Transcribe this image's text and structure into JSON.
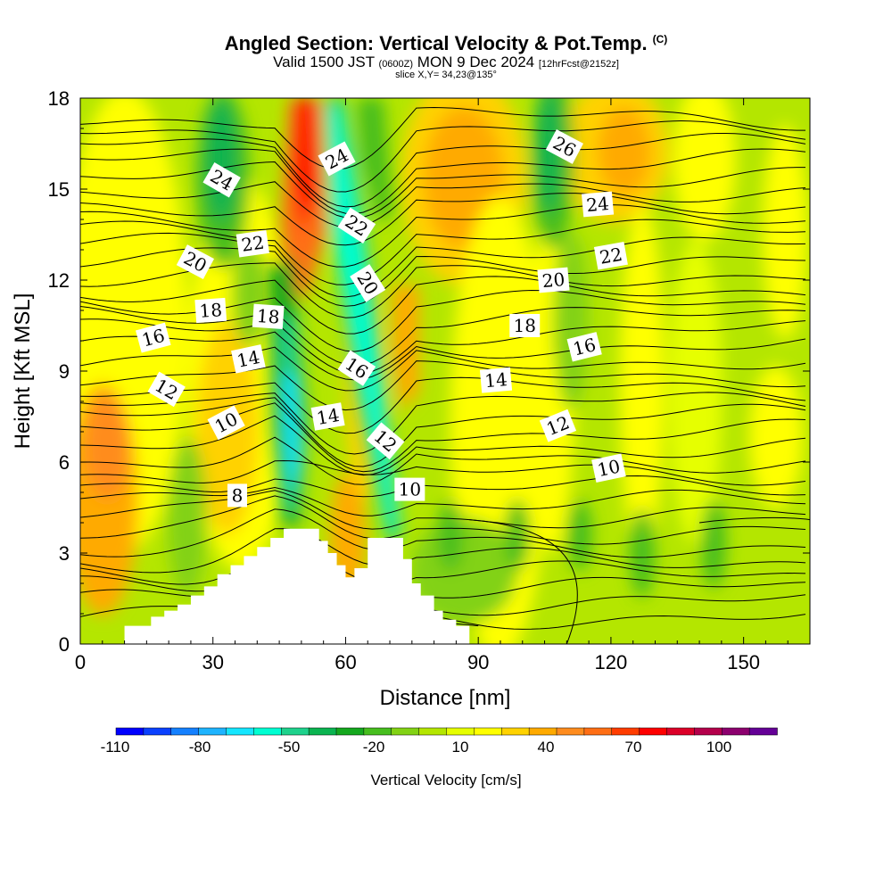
{
  "header": {
    "title": "Angled Section: Vertical Velocity & Pot.Temp.",
    "title_mark": "(C)",
    "valid_text": "Valid 1500 JST",
    "utc_text": "(0600Z)",
    "date_text": "MON 9 Dec 2024",
    "forecast_text": "[12hrFcst@2152z]",
    "slice_text": "slice X,Y= 34,23@135°"
  },
  "chart_data": {
    "type": "heatmap",
    "xlabel": "Distance [nm]",
    "ylabel": "Height [Kft MSL]",
    "xlim": [
      0,
      165
    ],
    "ylim": [
      0,
      18
    ],
    "xticks": [
      0,
      30,
      60,
      90,
      120,
      150
    ],
    "yticks": [
      0,
      3,
      6,
      9,
      12,
      15,
      18
    ],
    "terrain": [
      [
        10,
        0.6
      ],
      [
        16,
        0.9
      ],
      [
        19,
        1.1
      ],
      [
        22,
        1.3
      ],
      [
        25,
        1.6
      ],
      [
        28,
        1.9
      ],
      [
        31,
        2.3
      ],
      [
        34,
        2.6
      ],
      [
        37,
        2.9
      ],
      [
        40,
        3.2
      ],
      [
        43,
        3.5
      ],
      [
        46,
        3.8
      ],
      [
        52,
        3.8
      ],
      [
        54,
        3.4
      ],
      [
        56,
        3.0
      ],
      [
        58,
        2.6
      ],
      [
        60,
        2.2
      ],
      [
        62,
        2.5
      ],
      [
        65,
        3.5
      ],
      [
        71,
        3.5
      ],
      [
        73,
        2.8
      ],
      [
        75,
        2.0
      ],
      [
        77,
        1.6
      ],
      [
        80,
        1.1
      ],
      [
        82,
        0.8
      ],
      [
        85,
        0.6
      ],
      [
        88,
        0.6
      ]
    ],
    "contour_labels": [
      {
        "text": "24",
        "x": 32,
        "y": 15.3,
        "angle": 30
      },
      {
        "text": "22",
        "x": 39,
        "y": 13.2,
        "angle": -8
      },
      {
        "text": "20",
        "x": 26,
        "y": 12.6,
        "angle": 28
      },
      {
        "text": "18",
        "x": 29.5,
        "y": 11.0,
        "angle": -4
      },
      {
        "text": "18",
        "x": 42.5,
        "y": 10.8,
        "angle": 4
      },
      {
        "text": "16",
        "x": 16.5,
        "y": 10.1,
        "angle": -15
      },
      {
        "text": "14",
        "x": 38,
        "y": 9.4,
        "angle": -12
      },
      {
        "text": "12",
        "x": 19.5,
        "y": 8.4,
        "angle": 30
      },
      {
        "text": "10",
        "x": 33,
        "y": 7.3,
        "angle": -28
      },
      {
        "text": "8",
        "x": 35.5,
        "y": 4.9,
        "angle": 0
      },
      {
        "text": "24",
        "x": 58,
        "y": 16.0,
        "angle": -28
      },
      {
        "text": "22",
        "x": 62.5,
        "y": 13.8,
        "angle": 33
      },
      {
        "text": "20",
        "x": 65,
        "y": 11.9,
        "angle": 58
      },
      {
        "text": "16",
        "x": 62.5,
        "y": 9.1,
        "angle": 33
      },
      {
        "text": "14",
        "x": 56,
        "y": 7.5,
        "angle": -10
      },
      {
        "text": "12",
        "x": 69,
        "y": 6.7,
        "angle": 40
      },
      {
        "text": "10",
        "x": 74.5,
        "y": 5.1,
        "angle": 0
      },
      {
        "text": "26",
        "x": 109.5,
        "y": 16.4,
        "angle": 28
      },
      {
        "text": "24",
        "x": 117,
        "y": 14.5,
        "angle": -5
      },
      {
        "text": "22",
        "x": 120,
        "y": 12.8,
        "angle": -10
      },
      {
        "text": "20",
        "x": 107,
        "y": 12.0,
        "angle": -5
      },
      {
        "text": "18",
        "x": 100.5,
        "y": 10.5,
        "angle": 0
      },
      {
        "text": "16",
        "x": 114,
        "y": 9.8,
        "angle": -14
      },
      {
        "text": "14",
        "x": 94,
        "y": 8.7,
        "angle": -5
      },
      {
        "text": "12",
        "x": 108,
        "y": 7.2,
        "angle": -22
      },
      {
        "text": "10",
        "x": 119.5,
        "y": 5.8,
        "angle": -12
      }
    ]
  },
  "colorbar": {
    "label": "Vertical Velocity [cm/s]",
    "tick_labels": [
      "-110",
      "-80",
      "-50",
      "-20",
      "10",
      "40",
      "70",
      "100"
    ],
    "colors": [
      "#0000ff",
      "#0a40ff",
      "#1480ff",
      "#1eb4ff",
      "#14e6ff",
      "#00ffd2",
      "#1ed28c",
      "#0ab450",
      "#14a81e",
      "#46be1e",
      "#82d214",
      "#b4e600",
      "#e6ff00",
      "#ffff00",
      "#ffd200",
      "#ffaa00",
      "#ff8c1e",
      "#ff6e14",
      "#ff3c00",
      "#ff0000",
      "#dc0028",
      "#b4004b",
      "#8c006e",
      "#640096"
    ]
  }
}
